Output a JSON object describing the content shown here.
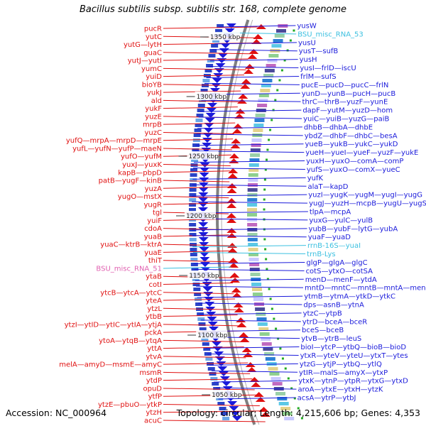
{
  "title": "Bacillus subtilis subsp. subtilis str. 168, complete genome",
  "footer": {
    "accession": "Accession: NC_000964",
    "summary": "Topology: circular; Length: 4,215,606 bp; Genes: 4,353"
  },
  "colors": {
    "left_strand": "#e01010",
    "right_strand": "#1a1adb",
    "rna": "#3cc0e0",
    "backbone": "#808080",
    "tick": "#22aa22"
  },
  "kbp_ticks": [
    "1350 kbp",
    "1300 kbp",
    "1250 kbp",
    "1200 kbp",
    "1150 kbp",
    "1100 kbp",
    "1050 kbp"
  ],
  "left_genes": [
    {
      "text": "pucR"
    },
    {
      "text": "yutC"
    },
    {
      "text": "yutG—lytH"
    },
    {
      "text": "guaC"
    },
    {
      "text": "yutJ—yutI"
    },
    {
      "text": "yumC"
    },
    {
      "text": "yuiD"
    },
    {
      "text": "bioYB"
    },
    {
      "text": "yukJ"
    },
    {
      "text": "ald"
    },
    {
      "text": "yukF"
    },
    {
      "text": "yuzE"
    },
    {
      "text": "mrpB"
    },
    {
      "text": "yuzC"
    },
    {
      "text": "yufQ—mrpA—mrpD—mrpE"
    },
    {
      "text": "yufL—yufN—yufP—maeN"
    },
    {
      "text": "yufO—yufM"
    },
    {
      "text": "yuxJ—yuxK"
    },
    {
      "text": "kapB—pbpD"
    },
    {
      "text": "patB—yugF—kinB"
    },
    {
      "text": "yuzA"
    },
    {
      "text": "yugO—mstX"
    },
    {
      "text": "yugR"
    },
    {
      "text": "tgl"
    },
    {
      "text": "yuiF"
    },
    {
      "text": "cdoA"
    },
    {
      "text": "yuaB"
    },
    {
      "text": "yuaC—ktrB—ktrA"
    },
    {
      "text": "yuaE"
    },
    {
      "text": "thiT"
    },
    {
      "text": "BSU_misc_RNA_51",
      "rna": true
    },
    {
      "text": "ytaB"
    },
    {
      "text": "cotI"
    },
    {
      "text": "ytcB—ytcA—ytcC"
    },
    {
      "text": "yteA"
    },
    {
      "text": "ytzL"
    },
    {
      "text": "ytbB"
    },
    {
      "text": "ytzI—ytID—ytIC—ytIA—ytjA"
    },
    {
      "text": "pckA"
    },
    {
      "text": "ytoA—ytqB—ytqA"
    },
    {
      "text": "yttA"
    },
    {
      "text": "ytvA"
    },
    {
      "text": "melA—amyD—msmE—amyC"
    },
    {
      "text": "msmR"
    },
    {
      "text": "ytdP"
    },
    {
      "text": "opuD"
    },
    {
      "text": "ytfP"
    },
    {
      "text": "ytzE—pbuO—ytkP"
    },
    {
      "text": "ytzH"
    },
    {
      "text": "acuC"
    }
  ],
  "right_genes": [
    {
      "text": "yusW"
    },
    {
      "text": "BSU_misc_RNA_53",
      "rna": true
    },
    {
      "text": "yusU"
    },
    {
      "text": "yusT—sufB"
    },
    {
      "text": "yusH"
    },
    {
      "text": "yusI—frlD—iscU"
    },
    {
      "text": "frlM—sufS"
    },
    {
      "text": "pucE—pucD—pucC—frlN"
    },
    {
      "text": "yunD—yunB—pucH—pucB"
    },
    {
      "text": "thrC—thrB—yuzF—yunE"
    },
    {
      "text": "dapF—yutM—yuzD—hom"
    },
    {
      "text": "yuiC—yuiB—yuzG—paiB"
    },
    {
      "text": "dhbB—dhbA—dhbE"
    },
    {
      "text": "ybdZ—dhbF—dhbC—besA"
    },
    {
      "text": "yueB—yukB—yukC—yukD"
    },
    {
      "text": "yueH—yueI—yueF—yuzF—yukE"
    },
    {
      "text": "yuxH—yuxO—comA—comP"
    },
    {
      "text": "yufS—yuxO—comX—yueC"
    },
    {
      "text": "yufK"
    },
    {
      "text": "alaT—kapD"
    },
    {
      "text": "yuzI—yugK—yugM—yugI—yugG"
    },
    {
      "text": "yugJ—yuzH—mcpB—yugU—yugS"
    },
    {
      "text": "tlpA—mcpA"
    },
    {
      "text": "yuxG—yulC—yulB"
    },
    {
      "text": "yubB—yubF—lytG—yubA"
    },
    {
      "text": "yuaF—yuaD"
    },
    {
      "text": "rrnB-16S—yuaI",
      "rna": true
    },
    {
      "text": "trnB-Lys",
      "rna": true
    },
    {
      "text": "glgP—glgA—glgC"
    },
    {
      "text": "cotS—ytxO—cotSA"
    },
    {
      "text": "menD—menF—ytdA"
    },
    {
      "text": "mntD—mntC—mntB—mntA—menC"
    },
    {
      "text": "ytmB—ytmA—ytkD—ytkC"
    },
    {
      "text": "dps—asnB—ytnA"
    },
    {
      "text": "ytzC—ytpB"
    },
    {
      "text": "ytrD—bceA—bceR"
    },
    {
      "text": "bceS—bceB"
    },
    {
      "text": "ytvB—ytrB—leuS"
    },
    {
      "text": "bioI—ytcP—ytbQ—bioB—bioD"
    },
    {
      "text": "ytxR—yteV—yteU—ytxT—ytes"
    },
    {
      "text": "ytzG—ytjP—ytbQ—ytlQ"
    },
    {
      "text": "ytIR—malS—amyX—ytxP"
    },
    {
      "text": "ytxK—ytnP—ytpR—ytxG—ytxD"
    },
    {
      "text": "aroA—ytxE—ytxH—ytzK"
    },
    {
      "text": "acsA—ytrP—ytbJ"
    }
  ]
}
